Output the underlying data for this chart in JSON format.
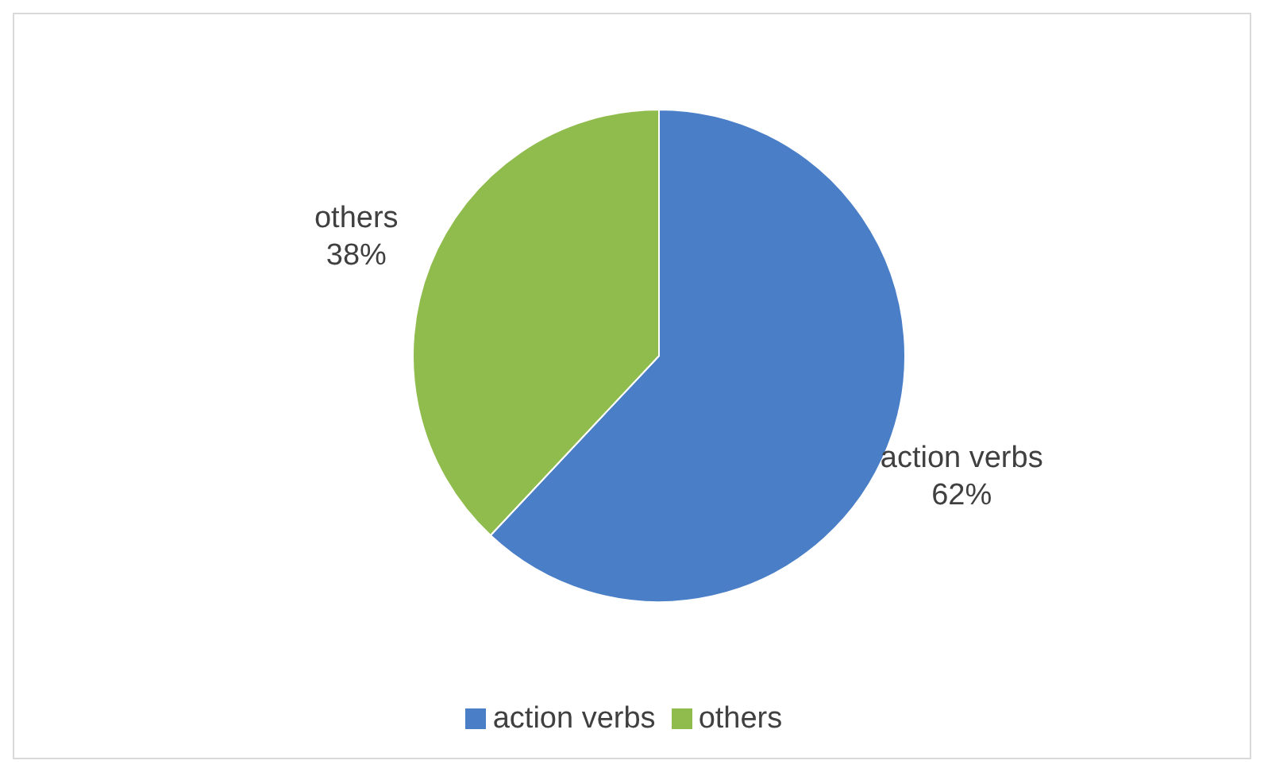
{
  "chart_data": {
    "type": "pie",
    "categories": [
      "action verbs",
      "others"
    ],
    "values": [
      62,
      38
    ],
    "colors": [
      "#4a7fc8",
      "#8fbc4c"
    ],
    "value_labels": [
      "62%",
      "38%"
    ],
    "legend": "bottom"
  }
}
